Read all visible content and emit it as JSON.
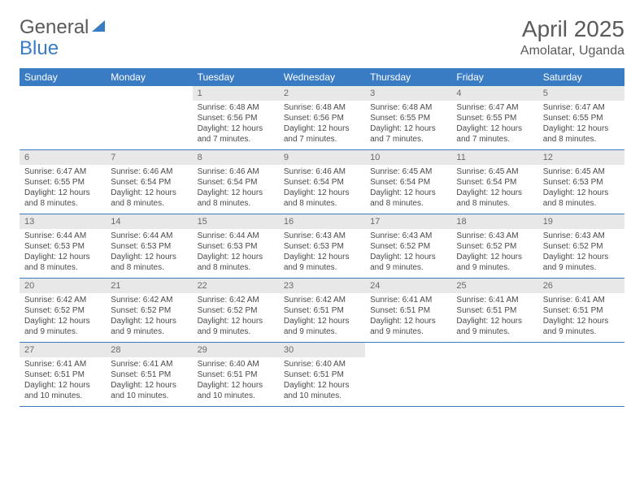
{
  "brand": {
    "part1": "General",
    "part2": "Blue"
  },
  "title": "April 2025",
  "location": "Amolatar, Uganda",
  "colors": {
    "header_bg": "#3a7cc4",
    "header_text": "#ffffff",
    "daynum_bg": "#e8e8e8",
    "daynum_text": "#6a6a6a",
    "border": "#3a7cc4",
    "body_text": "#4a4a4a",
    "title_text": "#5a5a5a"
  },
  "weekdays": [
    "Sunday",
    "Monday",
    "Tuesday",
    "Wednesday",
    "Thursday",
    "Friday",
    "Saturday"
  ],
  "weeks": [
    [
      {
        "num": "",
        "sunrise": "",
        "sunset": "",
        "daylight": ""
      },
      {
        "num": "",
        "sunrise": "",
        "sunset": "",
        "daylight": ""
      },
      {
        "num": "1",
        "sunrise": "Sunrise: 6:48 AM",
        "sunset": "Sunset: 6:56 PM",
        "daylight": "Daylight: 12 hours and 7 minutes."
      },
      {
        "num": "2",
        "sunrise": "Sunrise: 6:48 AM",
        "sunset": "Sunset: 6:56 PM",
        "daylight": "Daylight: 12 hours and 7 minutes."
      },
      {
        "num": "3",
        "sunrise": "Sunrise: 6:48 AM",
        "sunset": "Sunset: 6:55 PM",
        "daylight": "Daylight: 12 hours and 7 minutes."
      },
      {
        "num": "4",
        "sunrise": "Sunrise: 6:47 AM",
        "sunset": "Sunset: 6:55 PM",
        "daylight": "Daylight: 12 hours and 7 minutes."
      },
      {
        "num": "5",
        "sunrise": "Sunrise: 6:47 AM",
        "sunset": "Sunset: 6:55 PM",
        "daylight": "Daylight: 12 hours and 8 minutes."
      }
    ],
    [
      {
        "num": "6",
        "sunrise": "Sunrise: 6:47 AM",
        "sunset": "Sunset: 6:55 PM",
        "daylight": "Daylight: 12 hours and 8 minutes."
      },
      {
        "num": "7",
        "sunrise": "Sunrise: 6:46 AM",
        "sunset": "Sunset: 6:54 PM",
        "daylight": "Daylight: 12 hours and 8 minutes."
      },
      {
        "num": "8",
        "sunrise": "Sunrise: 6:46 AM",
        "sunset": "Sunset: 6:54 PM",
        "daylight": "Daylight: 12 hours and 8 minutes."
      },
      {
        "num": "9",
        "sunrise": "Sunrise: 6:46 AM",
        "sunset": "Sunset: 6:54 PM",
        "daylight": "Daylight: 12 hours and 8 minutes."
      },
      {
        "num": "10",
        "sunrise": "Sunrise: 6:45 AM",
        "sunset": "Sunset: 6:54 PM",
        "daylight": "Daylight: 12 hours and 8 minutes."
      },
      {
        "num": "11",
        "sunrise": "Sunrise: 6:45 AM",
        "sunset": "Sunset: 6:54 PM",
        "daylight": "Daylight: 12 hours and 8 minutes."
      },
      {
        "num": "12",
        "sunrise": "Sunrise: 6:45 AM",
        "sunset": "Sunset: 6:53 PM",
        "daylight": "Daylight: 12 hours and 8 minutes."
      }
    ],
    [
      {
        "num": "13",
        "sunrise": "Sunrise: 6:44 AM",
        "sunset": "Sunset: 6:53 PM",
        "daylight": "Daylight: 12 hours and 8 minutes."
      },
      {
        "num": "14",
        "sunrise": "Sunrise: 6:44 AM",
        "sunset": "Sunset: 6:53 PM",
        "daylight": "Daylight: 12 hours and 8 minutes."
      },
      {
        "num": "15",
        "sunrise": "Sunrise: 6:44 AM",
        "sunset": "Sunset: 6:53 PM",
        "daylight": "Daylight: 12 hours and 8 minutes."
      },
      {
        "num": "16",
        "sunrise": "Sunrise: 6:43 AM",
        "sunset": "Sunset: 6:53 PM",
        "daylight": "Daylight: 12 hours and 9 minutes."
      },
      {
        "num": "17",
        "sunrise": "Sunrise: 6:43 AM",
        "sunset": "Sunset: 6:52 PM",
        "daylight": "Daylight: 12 hours and 9 minutes."
      },
      {
        "num": "18",
        "sunrise": "Sunrise: 6:43 AM",
        "sunset": "Sunset: 6:52 PM",
        "daylight": "Daylight: 12 hours and 9 minutes."
      },
      {
        "num": "19",
        "sunrise": "Sunrise: 6:43 AM",
        "sunset": "Sunset: 6:52 PM",
        "daylight": "Daylight: 12 hours and 9 minutes."
      }
    ],
    [
      {
        "num": "20",
        "sunrise": "Sunrise: 6:42 AM",
        "sunset": "Sunset: 6:52 PM",
        "daylight": "Daylight: 12 hours and 9 minutes."
      },
      {
        "num": "21",
        "sunrise": "Sunrise: 6:42 AM",
        "sunset": "Sunset: 6:52 PM",
        "daylight": "Daylight: 12 hours and 9 minutes."
      },
      {
        "num": "22",
        "sunrise": "Sunrise: 6:42 AM",
        "sunset": "Sunset: 6:52 PM",
        "daylight": "Daylight: 12 hours and 9 minutes."
      },
      {
        "num": "23",
        "sunrise": "Sunrise: 6:42 AM",
        "sunset": "Sunset: 6:51 PM",
        "daylight": "Daylight: 12 hours and 9 minutes."
      },
      {
        "num": "24",
        "sunrise": "Sunrise: 6:41 AM",
        "sunset": "Sunset: 6:51 PM",
        "daylight": "Daylight: 12 hours and 9 minutes."
      },
      {
        "num": "25",
        "sunrise": "Sunrise: 6:41 AM",
        "sunset": "Sunset: 6:51 PM",
        "daylight": "Daylight: 12 hours and 9 minutes."
      },
      {
        "num": "26",
        "sunrise": "Sunrise: 6:41 AM",
        "sunset": "Sunset: 6:51 PM",
        "daylight": "Daylight: 12 hours and 9 minutes."
      }
    ],
    [
      {
        "num": "27",
        "sunrise": "Sunrise: 6:41 AM",
        "sunset": "Sunset: 6:51 PM",
        "daylight": "Daylight: 12 hours and 10 minutes."
      },
      {
        "num": "28",
        "sunrise": "Sunrise: 6:41 AM",
        "sunset": "Sunset: 6:51 PM",
        "daylight": "Daylight: 12 hours and 10 minutes."
      },
      {
        "num": "29",
        "sunrise": "Sunrise: 6:40 AM",
        "sunset": "Sunset: 6:51 PM",
        "daylight": "Daylight: 12 hours and 10 minutes."
      },
      {
        "num": "30",
        "sunrise": "Sunrise: 6:40 AM",
        "sunset": "Sunset: 6:51 PM",
        "daylight": "Daylight: 12 hours and 10 minutes."
      },
      {
        "num": "",
        "sunrise": "",
        "sunset": "",
        "daylight": ""
      },
      {
        "num": "",
        "sunrise": "",
        "sunset": "",
        "daylight": ""
      },
      {
        "num": "",
        "sunrise": "",
        "sunset": "",
        "daylight": ""
      }
    ]
  ]
}
